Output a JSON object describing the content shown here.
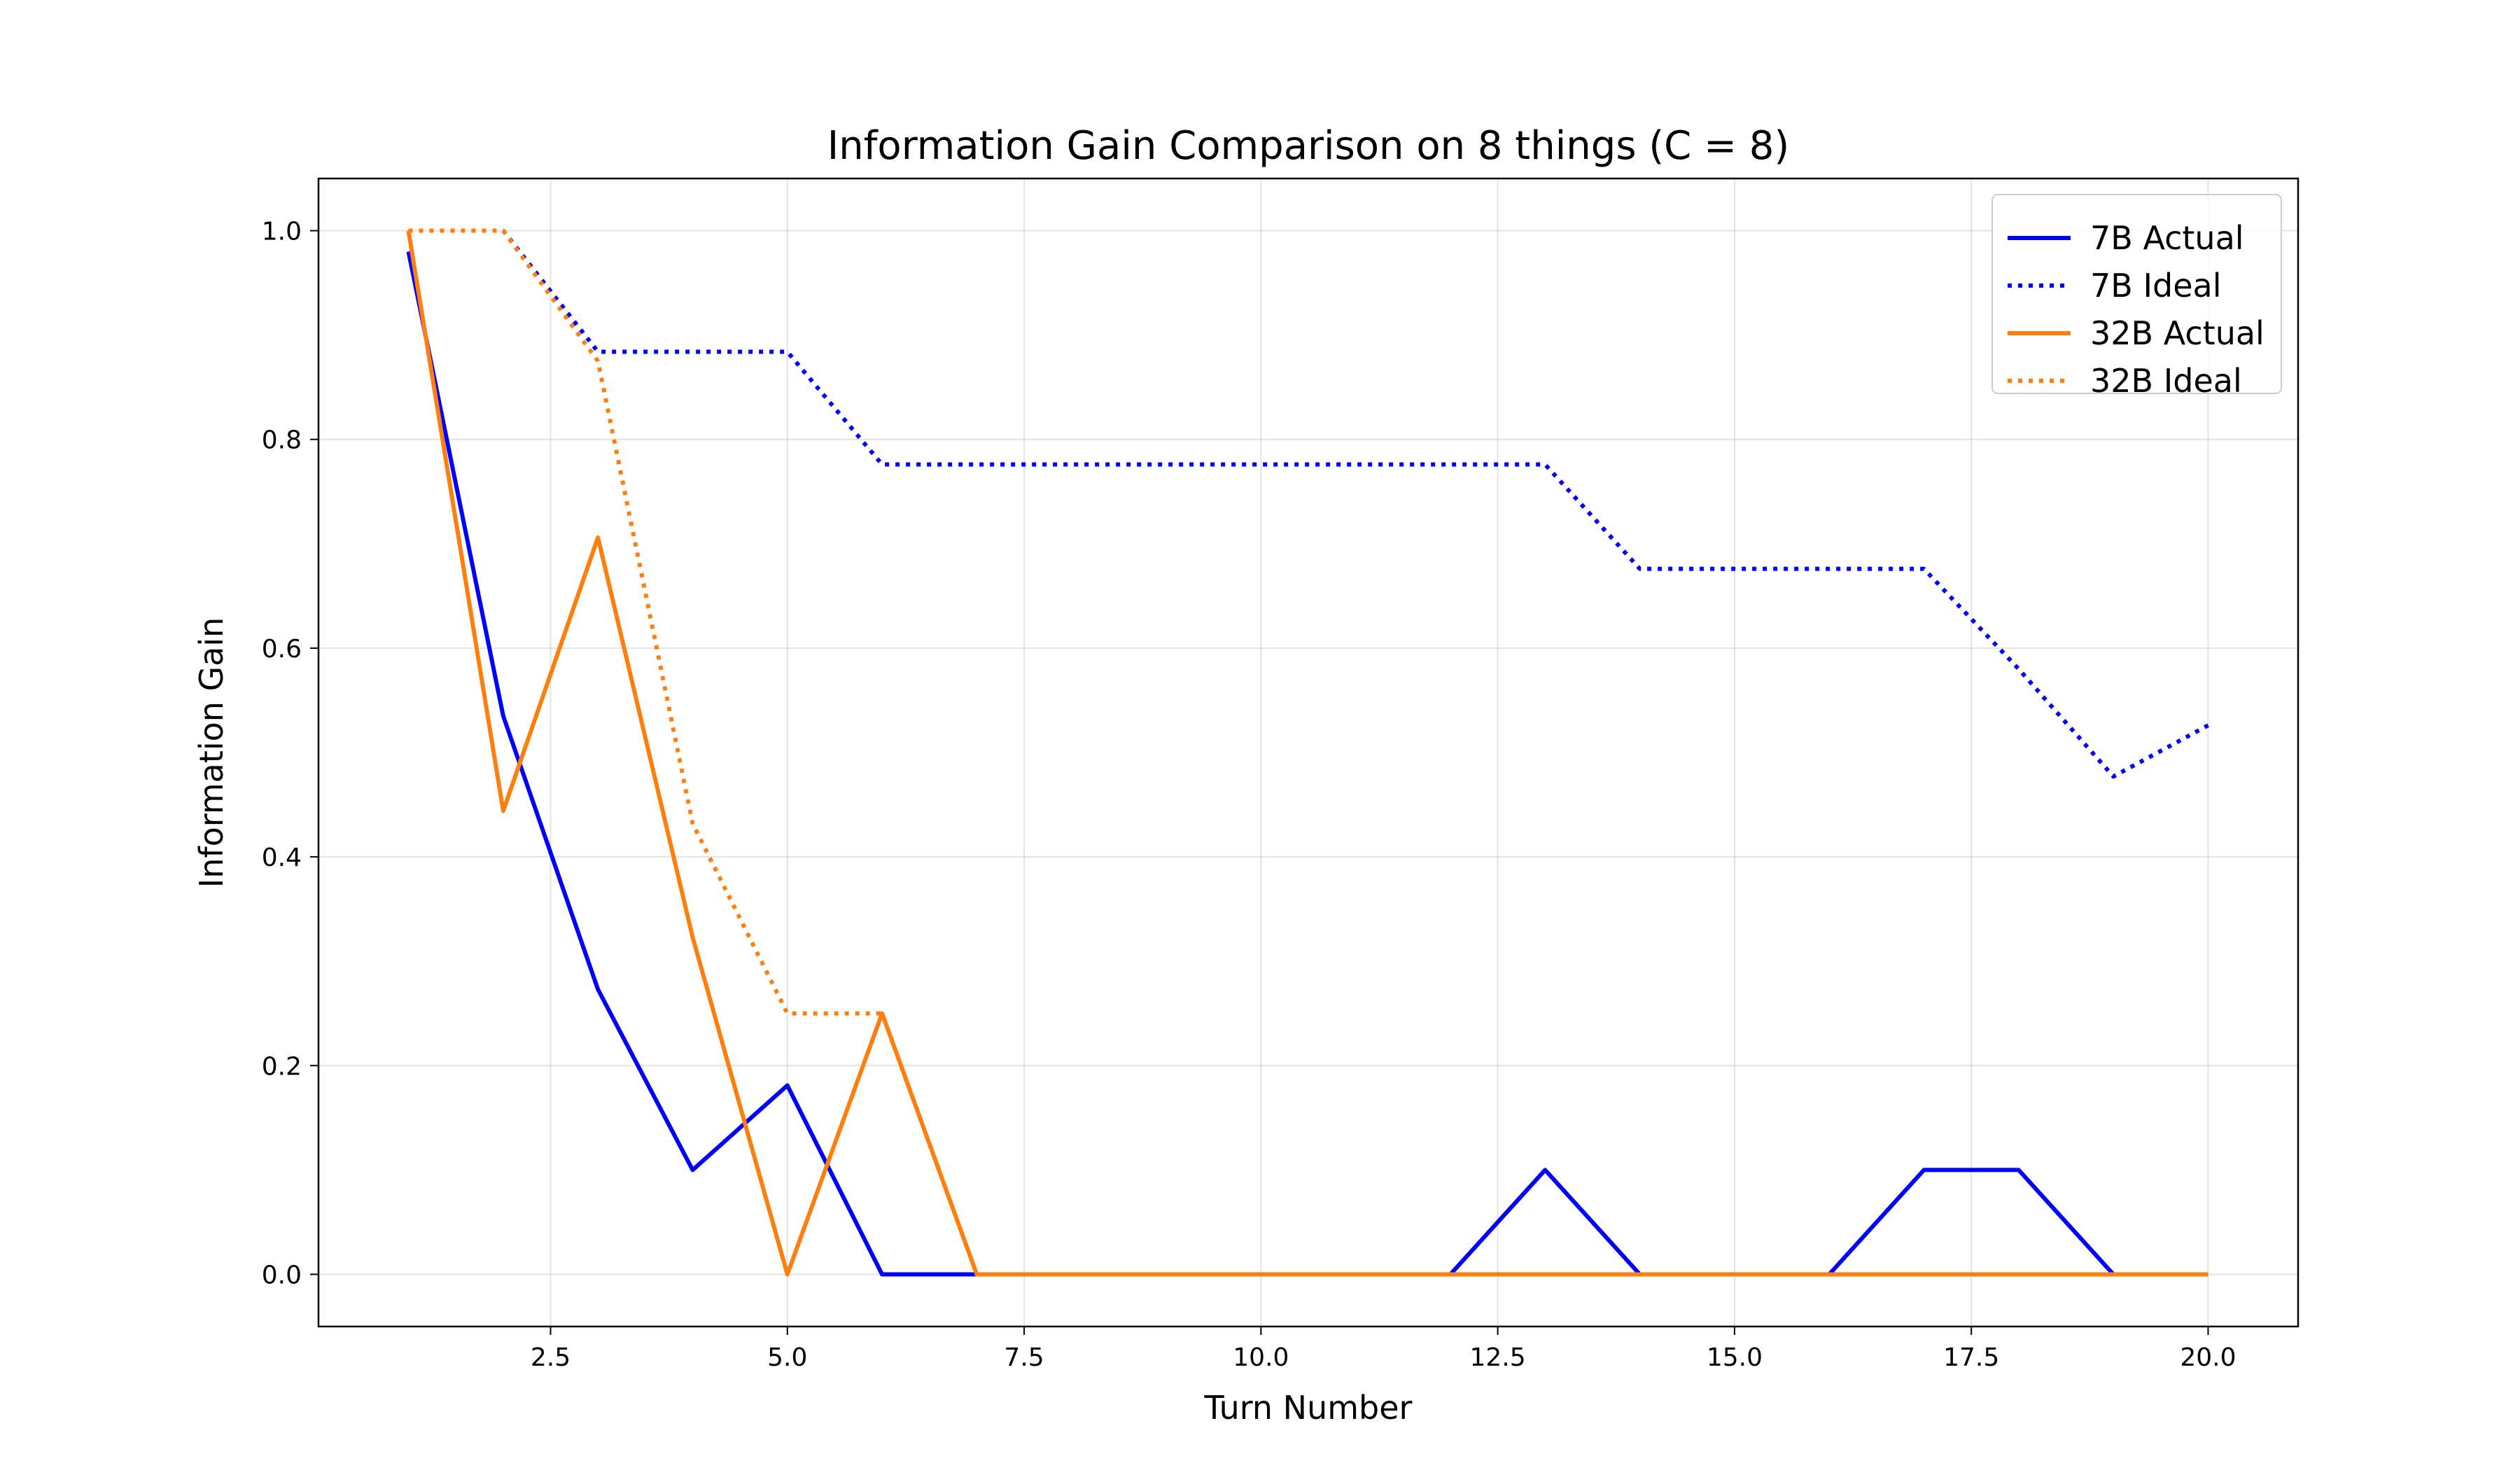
{
  "chart_data": {
    "type": "line",
    "title": "Information Gain Comparison on 8 things (C = 8)",
    "xlabel": "Turn Number",
    "ylabel": "Information Gain",
    "xlim": [
      0.05,
      20.95
    ],
    "ylim": [
      -0.05,
      1.05
    ],
    "xticks": [
      2.5,
      5.0,
      7.5,
      10.0,
      12.5,
      15.0,
      17.5,
      20.0
    ],
    "xtick_labels": [
      "2.5",
      "5.0",
      "7.5",
      "10.0",
      "12.5",
      "15.0",
      "17.5",
      "20.0"
    ],
    "yticks": [
      0.0,
      0.2,
      0.4,
      0.6,
      0.8,
      1.0
    ],
    "ytick_labels": [
      "0.0",
      "0.2",
      "0.4",
      "0.6",
      "0.8",
      "1.0"
    ],
    "grid": true,
    "legend_position": "top-right",
    "x": [
      1,
      2,
      3,
      4,
      5,
      6,
      7,
      8,
      9,
      10,
      11,
      12,
      13,
      14,
      15,
      16,
      17,
      18,
      19,
      20
    ],
    "series": [
      {
        "name": "7B Actual",
        "color": "#0000ff",
        "style": "solid",
        "values": [
          0.98,
          0.535,
          0.273,
          0.1,
          0.181,
          0.0,
          0.0,
          0.0,
          0.0,
          0.0,
          0.0,
          0.0,
          0.1,
          0.0,
          0.0,
          0.0,
          0.1,
          0.1,
          0.0,
          0.0
        ]
      },
      {
        "name": "7B Ideal",
        "color": "#0000ff",
        "style": "dotted",
        "values": [
          1.0,
          1.0,
          0.884,
          0.884,
          0.884,
          0.776,
          0.776,
          0.776,
          0.776,
          0.776,
          0.776,
          0.776,
          0.776,
          0.676,
          0.676,
          0.676,
          0.676,
          0.58,
          0.477,
          0.526
        ]
      },
      {
        "name": "32B Actual",
        "color": "#ff7f0e",
        "style": "solid",
        "values": [
          1.0,
          0.444,
          0.706,
          0.323,
          0.0,
          0.25,
          0.0,
          0.0,
          0.0,
          0.0,
          0.0,
          0.0,
          0.0,
          0.0,
          0.0,
          0.0,
          0.0,
          0.0,
          0.0,
          0.0
        ]
      },
      {
        "name": "32B Ideal",
        "color": "#ff7f0e",
        "style": "dotted",
        "values": [
          1.0,
          1.0,
          0.875,
          0.432,
          0.25,
          0.25,
          0.0,
          0.0,
          0.0,
          0.0,
          0.0,
          0.0,
          0.0,
          0.0,
          0.0,
          0.0,
          0.0,
          0.0,
          0.0,
          0.0
        ]
      }
    ]
  }
}
